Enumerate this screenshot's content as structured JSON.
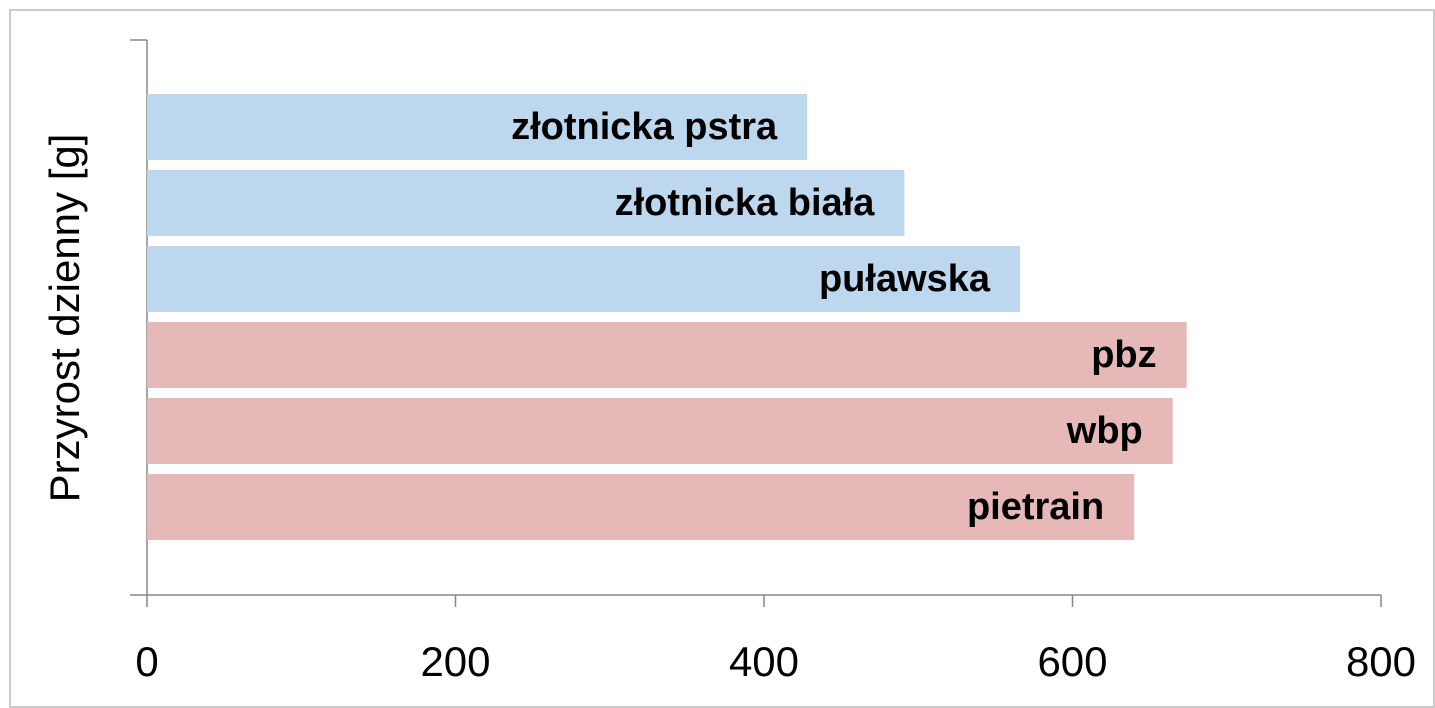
{
  "chart_data": {
    "type": "bar",
    "orientation": "horizontal",
    "y_label": "Przyrost dzienny [g]",
    "categories": [
      "złotnicka pstra",
      "złotnicka biała",
      "puławska",
      "pbz",
      "wbp",
      "pietrain"
    ],
    "values": [
      428,
      491,
      566,
      674,
      665,
      640
    ],
    "colors": [
      "#bdd7ee",
      "#bdd7ee",
      "#bdd7ee",
      "#e6b9b8",
      "#e6b9b8",
      "#e6b9b8"
    ],
    "xlim": [
      0,
      800
    ],
    "xticks": [
      0,
      200,
      400,
      600,
      800
    ],
    "grid": false
  }
}
